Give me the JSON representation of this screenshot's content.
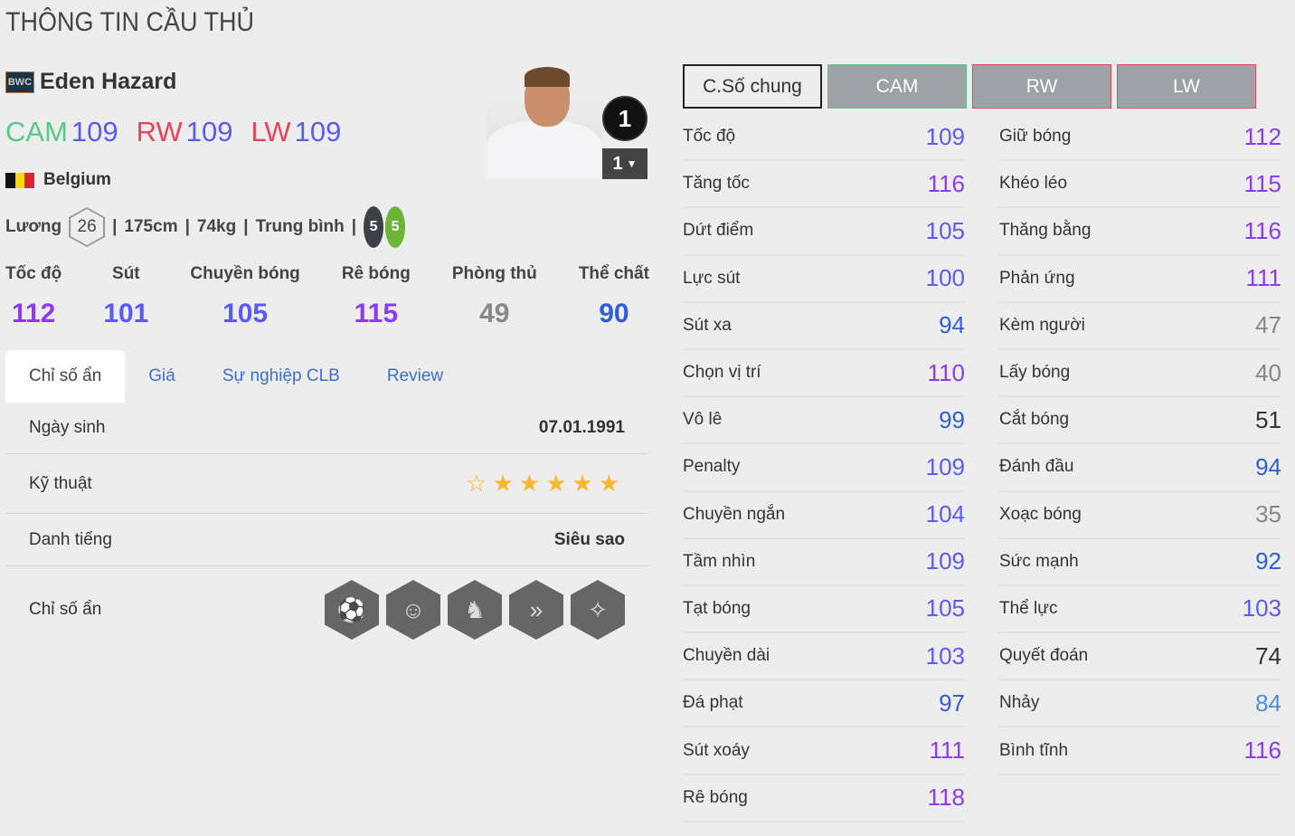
{
  "page_title": "THÔNG TIN CẦU THỦ",
  "player": {
    "season_badge": "BWC",
    "name": "Eden Hazard",
    "nation": "Belgium",
    "salary_label": "Lương",
    "salary": "26",
    "height": "175cm",
    "weight": "74kg",
    "body": "Trung bình",
    "left_foot": "5",
    "right_foot": "5",
    "rank": "1",
    "level": "1"
  },
  "positions": [
    {
      "pos": "CAM",
      "ovr": "109",
      "color": "#55c98a"
    },
    {
      "pos": "RW",
      "ovr": "109",
      "color": "#e8435a"
    },
    {
      "pos": "LW",
      "ovr": "109",
      "color": "#e8435a"
    }
  ],
  "categories": [
    {
      "label": "Tốc độ",
      "value": "112"
    },
    {
      "label": "Sút",
      "value": "101"
    },
    {
      "label": "Chuyền bóng",
      "value": "105"
    },
    {
      "label": "Rê bóng",
      "value": "115"
    },
    {
      "label": "Phòng thủ",
      "value": "49"
    },
    {
      "label": "Thể chất",
      "value": "90"
    }
  ],
  "tabs": [
    "Chỉ số ẩn",
    "Giá",
    "Sự nghiệp CLB",
    "Review"
  ],
  "details": {
    "birth_label": "Ngày sinh",
    "birth": "07.01.1991",
    "skill_label": "Kỹ thuật",
    "skill_stars": 5,
    "skill_max": 6,
    "fame_label": "Danh tiếng",
    "fame": "Siêu sao",
    "hidden_label": "Chỉ số ẩn",
    "hidden_icons": [
      "long-shot-icon",
      "leadership-icon",
      "juggling-icon",
      "speed-dribbler-icon",
      "playmaker-icon"
    ]
  },
  "pos_tabs": [
    "C.Số chung",
    "CAM",
    "RW",
    "LW"
  ],
  "stats_left": [
    [
      "Tốc độ",
      "109"
    ],
    [
      "Tăng tốc",
      "116"
    ],
    [
      "Dứt điểm",
      "105"
    ],
    [
      "Lực sút",
      "100"
    ],
    [
      "Sút xa",
      "94"
    ],
    [
      "Chọn vị trí",
      "110"
    ],
    [
      "Vô lê",
      "99"
    ],
    [
      "Penalty",
      "109"
    ],
    [
      "Chuyền ngắn",
      "104"
    ],
    [
      "Tầm nhìn",
      "109"
    ],
    [
      "Tạt bóng",
      "105"
    ],
    [
      "Chuyền dài",
      "103"
    ],
    [
      "Đá phạt",
      "97"
    ],
    [
      "Sút xoáy",
      "111"
    ],
    [
      "Rê bóng",
      "118"
    ]
  ],
  "stats_right": [
    [
      "Giữ bóng",
      "112"
    ],
    [
      "Khéo léo",
      "115"
    ],
    [
      "Thăng bằng",
      "116"
    ],
    [
      "Phản ứng",
      "111"
    ],
    [
      "Kèm người",
      "47"
    ],
    [
      "Lấy bóng",
      "40"
    ],
    [
      "Cắt bóng",
      "51"
    ],
    [
      "Đánh đầu",
      "94"
    ],
    [
      "Xoạc bóng",
      "35"
    ],
    [
      "Sức mạnh",
      "92"
    ],
    [
      "Thể lực",
      "103"
    ],
    [
      "Quyết đoán",
      "74"
    ],
    [
      "Nhảy",
      "84"
    ],
    [
      "Bình tĩnh",
      "116"
    ]
  ],
  "colors": {
    "tier110": "#8b3cf0",
    "tier100": "#5b5bf0",
    "tier90": "#2f5fd0",
    "tier80": "#4a90d9",
    "tier50": "#333333",
    "low": "#888888"
  }
}
